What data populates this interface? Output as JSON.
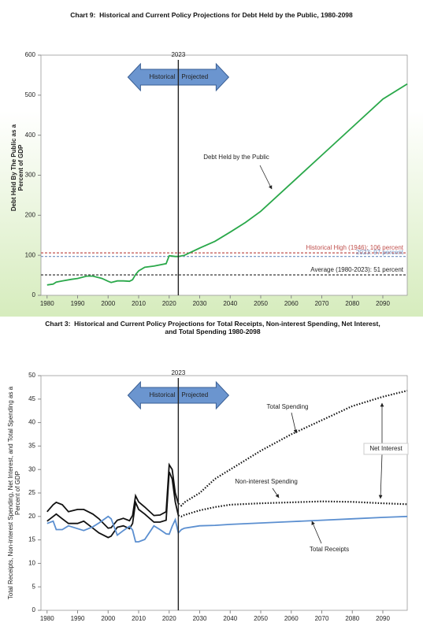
{
  "chart_data": [
    {
      "type": "line",
      "title": "Chart 9:  Historical and Current Policy Projections for Debt Held by the Public, 1980-2098",
      "y_label": "Debt Held By The Public as a Percent of GDP",
      "x": [
        1980,
        1982,
        1983,
        1985,
        1988,
        1990,
        1993,
        1995,
        1998,
        2000,
        2001,
        2003,
        2005,
        2007,
        2008,
        2009,
        2010,
        2012,
        2015,
        2019,
        2020,
        2021,
        2022,
        2023,
        2025,
        2030,
        2035,
        2040,
        2045,
        2050,
        2060,
        2070,
        2080,
        2090,
        2098
      ],
      "series": [
        {
          "name": "Debt Held by the Public",
          "color": "#2aa84a",
          "projected_dash": false,
          "values": [
            26,
            28,
            33,
            36,
            40,
            42,
            48,
            48,
            42,
            35,
            32,
            36,
            36,
            35,
            39,
            52,
            61,
            70,
            73,
            79,
            99,
            98,
            97,
            97,
            100,
            118,
            135,
            158,
            182,
            210,
            280,
            350,
            420,
            490,
            528
          ]
        }
      ],
      "reference_lines": [
        {
          "label": "Historical High (1946): 106 percent",
          "value": 106,
          "color": "#c0504d"
        },
        {
          "label": "2023: 97 percent",
          "value": 97,
          "color": "#6f8fbf"
        },
        {
          "label": "Average (1980-2023): 51 percent",
          "value": 51,
          "color": "#222222"
        }
      ],
      "divider": 2023,
      "arrow_labels": [
        "Historical",
        "Projected"
      ],
      "xlim": [
        1978,
        2098
      ],
      "xticks": [
        1980,
        1990,
        2000,
        2010,
        2020,
        2030,
        2040,
        2050,
        2060,
        2070,
        2080,
        2090
      ],
      "ylim": [
        0,
        600
      ],
      "yticks": [
        0,
        100,
        200,
        300,
        400,
        500,
        600
      ]
    },
    {
      "type": "line",
      "title": "Chart 3:  Historical and Current Policy Projections for Total Receipts, Non-interest Spending, Net Interest, and Total Spending 1980-2098",
      "y_label": "Total Receipts, Non-interest Spending, Net Interest, and Total Spending as a Percent of GDP",
      "x": [
        1980,
        1982,
        1983,
        1985,
        1987,
        1990,
        1992,
        1995,
        1997,
        2000,
        2001,
        2003,
        2005,
        2007,
        2008,
        2009,
        2010,
        2012,
        2015,
        2017,
        2019,
        2020,
        2021,
        2022,
        2023,
        2024,
        2025,
        2030,
        2035,
        2040,
        2050,
        2060,
        2070,
        2080,
        2090,
        2098
      ],
      "series": [
        {
          "name": "Total Spending",
          "color": "#111111",
          "projected_dash": true,
          "values": [
            21,
            22.5,
            23,
            22.5,
            21,
            21.5,
            21.5,
            20.5,
            19.5,
            17.5,
            17.6,
            19.2,
            19.6,
            19.1,
            20.2,
            24.4,
            23.1,
            22,
            20.2,
            20.3,
            21,
            31,
            30,
            25,
            22.7,
            22.3,
            23,
            25,
            28,
            30,
            34,
            37.5,
            40.5,
            43.5,
            45.5,
            46.8
          ]
        },
        {
          "name": "Non-interest Spending",
          "color": "#111111",
          "projected_dash": true,
          "values": [
            19,
            20,
            20.5,
            19.5,
            18.5,
            18.5,
            19,
            17.5,
            16.5,
            15.5,
            15.8,
            17.7,
            18,
            17.4,
            18.5,
            23,
            21.5,
            20.5,
            18.8,
            18.8,
            19.2,
            29.5,
            28,
            23.1,
            20.2,
            20,
            20.3,
            21.3,
            22,
            22.5,
            22.8,
            23,
            23.2,
            23.1,
            22.8,
            22.6
          ]
        },
        {
          "name": "Total Receipts",
          "color": "#5b8fd0",
          "projected_dash": false,
          "values": [
            18.5,
            19,
            17.2,
            17.2,
            18,
            17.4,
            17,
            17.8,
            18.6,
            20,
            19.5,
            16,
            17,
            17.9,
            17.1,
            14.6,
            14.6,
            15.1,
            18,
            17.2,
            16.3,
            16.2,
            17.9,
            19.3,
            16.5,
            17.2,
            17.5,
            18,
            18.1,
            18.3,
            18.6,
            18.9,
            19.2,
            19.5,
            19.8,
            20
          ]
        }
      ],
      "annotations": [
        "Net Interest"
      ],
      "divider": 2023,
      "arrow_labels": [
        "Historical",
        "Projected"
      ],
      "xlim": [
        1978,
        2098
      ],
      "xticks": [
        1980,
        1990,
        2000,
        2010,
        2020,
        2030,
        2040,
        2050,
        2060,
        2070,
        2080,
        2090
      ],
      "ylim": [
        0,
        50
      ],
      "yticks": [
        0,
        5,
        10,
        15,
        20,
        25,
        30,
        35,
        40,
        45,
        50
      ]
    }
  ]
}
